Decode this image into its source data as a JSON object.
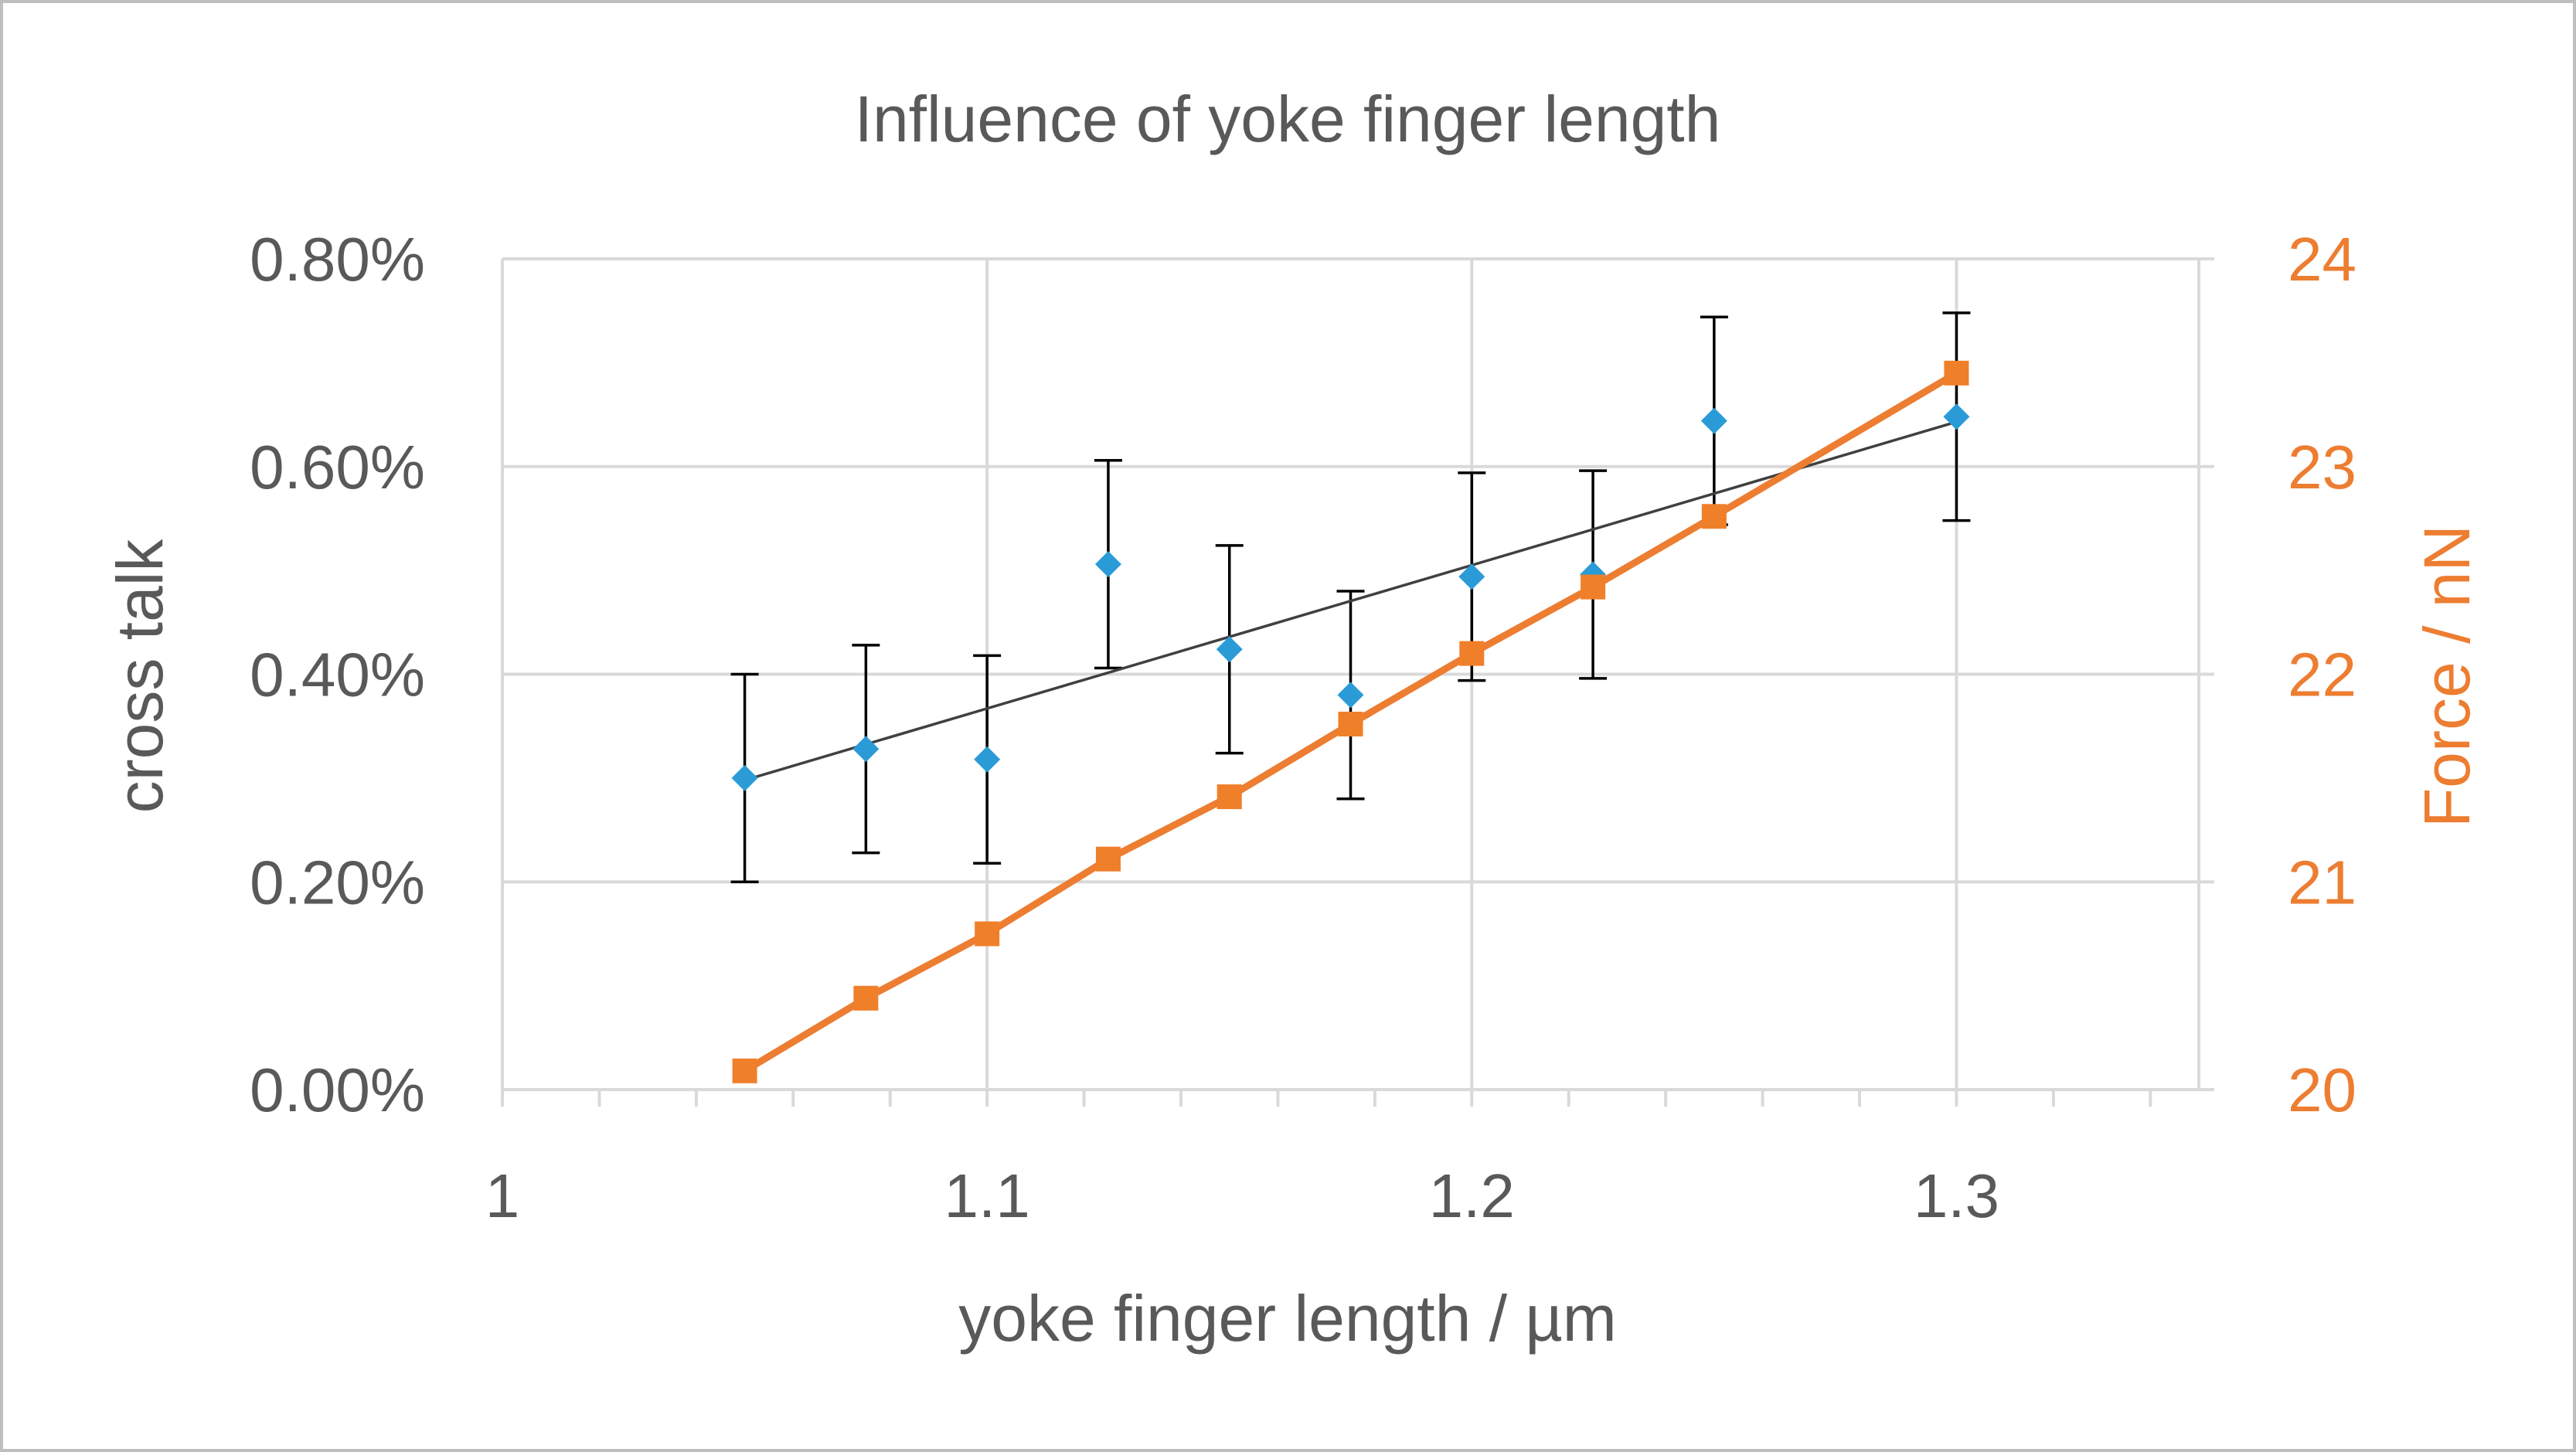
{
  "chart_data": {
    "type": "scatter",
    "title": "Influence of yoke finger length",
    "xlabel": "yoke finger length / µm",
    "ylabel": "cross talk",
    "y2label": "Force / nN",
    "xlim": [
      1,
      1.35
    ],
    "ylim": [
      0,
      0.008
    ],
    "y2lim": [
      20,
      24
    ],
    "x_ticks": [
      1,
      1.1,
      1.2,
      1.3
    ],
    "x_tick_labels": [
      "1",
      "1.1",
      "1.2",
      "1.3"
    ],
    "y_ticks": [
      0,
      0.002,
      0.004,
      0.006,
      0.008
    ],
    "y_tick_labels": [
      "0.00%",
      "0.20%",
      "0.40%",
      "0.60%",
      "0.80%"
    ],
    "y2_ticks": [
      20,
      21,
      22,
      23,
      24
    ],
    "y2_tick_labels": [
      "20",
      "21",
      "22",
      "23",
      "24"
    ],
    "grid": true,
    "series": [
      {
        "name": "cross talk",
        "axis": "left",
        "marker": "diamond",
        "color": "#2b9bd8",
        "x": [
          1.05,
          1.075,
          1.1,
          1.125,
          1.15,
          1.175,
          1.2,
          1.225,
          1.25,
          1.3
        ],
        "values": [
          0.003,
          0.00328,
          0.00318,
          0.00506,
          0.00424,
          0.0038,
          0.00494,
          0.00496,
          0.00644,
          0.00648
        ],
        "error": [
          0.001,
          0.001,
          0.001,
          0.001,
          0.001,
          0.001,
          0.001,
          0.001,
          0.001,
          0.001
        ]
      },
      {
        "name": "linear trend (cross talk)",
        "axis": "left",
        "type": "line",
        "color": "#404040",
        "x": [
          1.05,
          1.3
        ],
        "values": [
          0.00298,
          0.00643
        ]
      },
      {
        "name": "Force",
        "axis": "right",
        "marker": "square",
        "color": "#ed7d31",
        "x": [
          1.05,
          1.075,
          1.1,
          1.125,
          1.15,
          1.175,
          1.2,
          1.225,
          1.25,
          1.3
        ],
        "values": [
          20.09,
          20.44,
          20.75,
          21.11,
          21.41,
          21.76,
          22.1,
          22.42,
          22.76,
          23.45
        ]
      }
    ]
  }
}
